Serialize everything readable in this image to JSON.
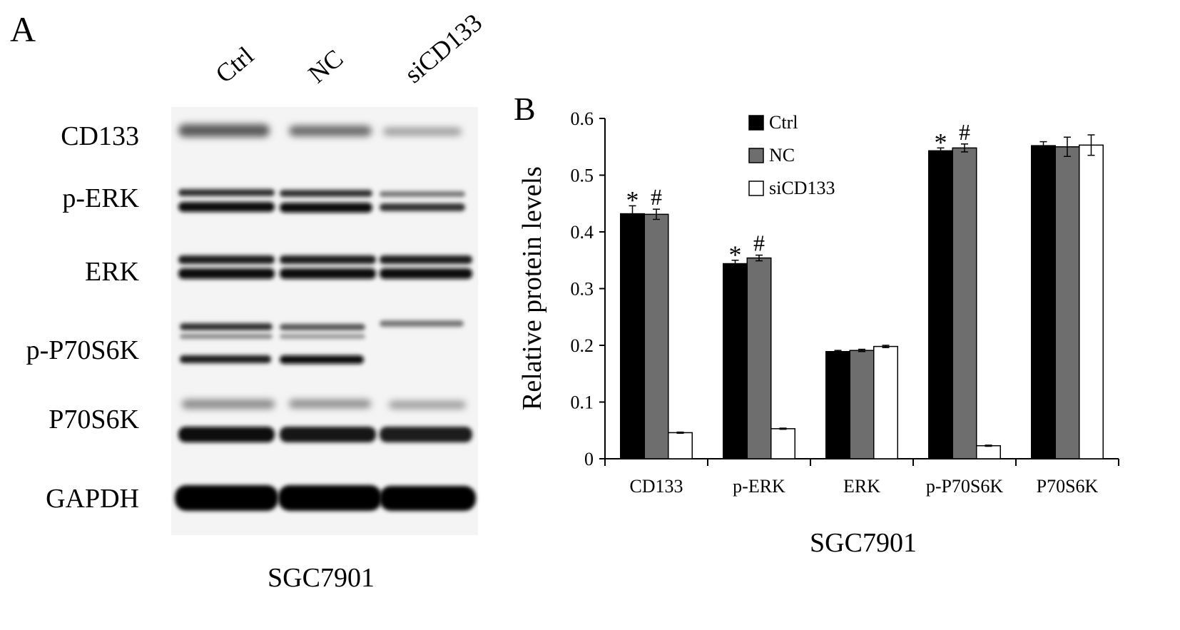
{
  "panel_a": {
    "letter": "A",
    "lanes": [
      "Ctrl",
      "NC",
      "siCD133"
    ],
    "proteins": [
      "CD133",
      "p-ERK",
      "ERK",
      "p-P70S6K",
      "P70S6K",
      "GAPDH"
    ],
    "xlabel": "SGC7901"
  },
  "chart_data": {
    "type": "bar",
    "panel_letter": "B",
    "categories": [
      "CD133",
      "p-ERK",
      "ERK",
      "p-P70S6K",
      "P70S6K"
    ],
    "series": [
      {
        "name": "Ctrl",
        "color": "#000000",
        "values": [
          0.432,
          0.344,
          0.189,
          0.543,
          0.552
        ],
        "errors": [
          0.014,
          0.006,
          0.002,
          0.005,
          0.007
        ]
      },
      {
        "name": "NC",
        "color": "#6e6e6e",
        "values": [
          0.431,
          0.354,
          0.191,
          0.548,
          0.55
        ],
        "errors": [
          0.009,
          0.005,
          0.002,
          0.007,
          0.017
        ]
      },
      {
        "name": "siCD133",
        "color": "#ffffff",
        "values": [
          0.046,
          0.053,
          0.198,
          0.023,
          0.553
        ],
        "errors": [
          0.001,
          0.001,
          0.002,
          0.001,
          0.018
        ]
      }
    ],
    "significance": [
      {
        "category": 0,
        "series": 0,
        "mark": "*"
      },
      {
        "category": 0,
        "series": 1,
        "mark": "#"
      },
      {
        "category": 1,
        "series": 0,
        "mark": "*"
      },
      {
        "category": 1,
        "series": 1,
        "mark": "#"
      },
      {
        "category": 3,
        "series": 0,
        "mark": "*"
      },
      {
        "category": 3,
        "series": 1,
        "mark": "#"
      }
    ],
    "ylabel": "Relative protein levels",
    "xlabel": "SGC7901",
    "ylim": [
      0,
      0.6
    ],
    "yticks": [
      0,
      0.1,
      0.2,
      0.3,
      0.4,
      0.5,
      0.6
    ],
    "ytick_labels": [
      "0",
      "0.1",
      "0.2",
      "0.3",
      "0.4",
      "0.5",
      "0.6"
    ],
    "legend": "top-center",
    "grid": false
  }
}
